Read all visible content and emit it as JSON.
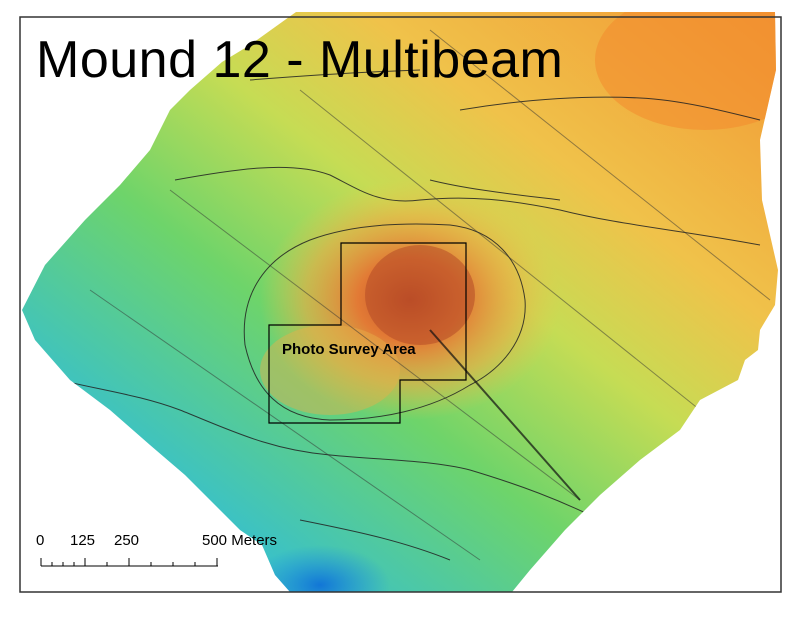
{
  "map": {
    "title": "Mound 12 - Multibeam",
    "survey_area_label": "Photo Survey Area",
    "colors": {
      "frame": "#333333",
      "deep": "#1a8ce0",
      "mid": "#6bd46a",
      "shallow": "#f29a2e",
      "peak": "#c8502a",
      "contour": "#222222"
    }
  },
  "scale_bar": {
    "labels": [
      "0",
      "125",
      "250",
      "500 Meters"
    ]
  }
}
